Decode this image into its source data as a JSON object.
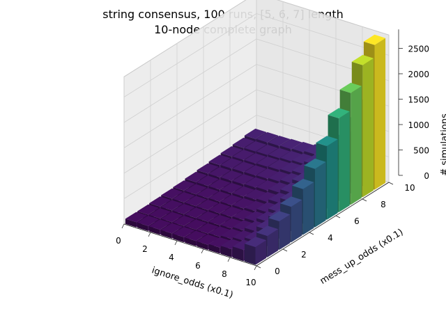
{
  "chart_data": {
    "type": "bar3d",
    "title_line1": "string consensus, 100 runs, [5, 6, 7] length",
    "title_line2": "10-node complete graph",
    "xlabel": "ignore_odds (x0.1)",
    "ylabel": "mess_up_odds (x0.1)",
    "zlabel": "# simulations",
    "x_ticks": [
      "0",
      "2",
      "4",
      "6",
      "8",
      "10"
    ],
    "y_ticks": [
      "0",
      "2",
      "4",
      "6",
      "8",
      "10"
    ],
    "z_ticks": [
      "0",
      "500",
      "1000",
      "1500",
      "2000",
      "2500"
    ],
    "xlim": [
      0,
      10
    ],
    "ylim": [
      0,
      10
    ],
    "zlim": [
      0,
      2900
    ],
    "colormap": "viridis",
    "x": [
      0,
      1,
      2,
      3,
      4,
      5,
      6,
      7,
      8,
      9,
      10
    ],
    "y": [
      0,
      1,
      2,
      3,
      4,
      5,
      6,
      7,
      8,
      9,
      10
    ],
    "z_note": "rows indexed by mess_up_odds (y), columns by ignore_odds (x)",
    "z": [
      [
        100,
        100,
        100,
        100,
        100,
        100,
        100,
        120,
        160,
        220,
        350
      ],
      [
        100,
        100,
        100,
        100,
        100,
        100,
        110,
        140,
        180,
        250,
        420
      ],
      [
        110,
        110,
        110,
        110,
        110,
        115,
        125,
        160,
        220,
        320,
        560
      ],
      [
        120,
        120,
        120,
        120,
        125,
        130,
        145,
        190,
        260,
        380,
        700
      ],
      [
        130,
        130,
        130,
        135,
        140,
        150,
        170,
        220,
        300,
        460,
        900
      ],
      [
        150,
        150,
        150,
        155,
        160,
        175,
        200,
        260,
        360,
        560,
        1150
      ],
      [
        170,
        170,
        175,
        180,
        190,
        205,
        240,
        310,
        430,
        700,
        1450
      ],
      [
        190,
        195,
        200,
        205,
        215,
        235,
        275,
        360,
        520,
        880,
        1850
      ],
      [
        210,
        215,
        220,
        230,
        240,
        265,
        310,
        420,
        620,
        1100,
        2200
      ],
      [
        230,
        235,
        240,
        250,
        265,
        290,
        345,
        470,
        720,
        1300,
        2600
      ],
      [
        260,
        265,
        270,
        280,
        295,
        325,
        380,
        520,
        800,
        1500,
        2850
      ]
    ]
  }
}
